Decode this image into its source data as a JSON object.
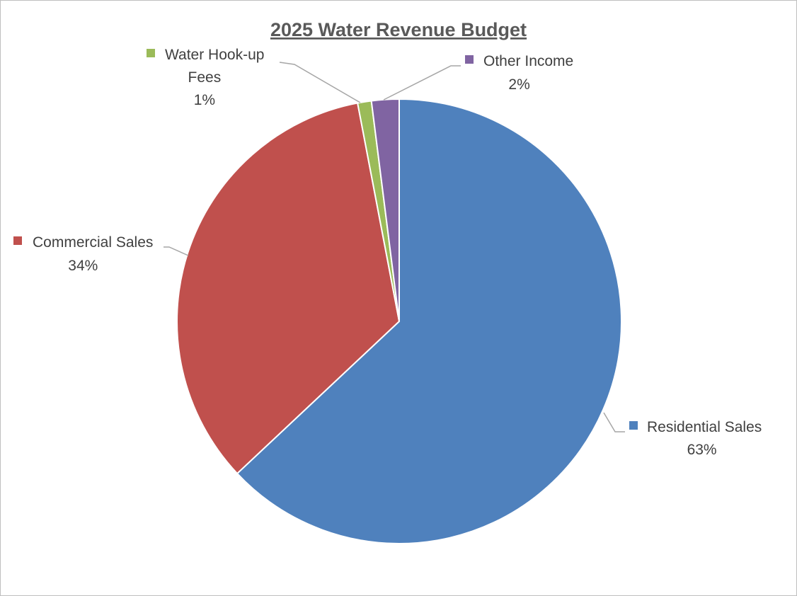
{
  "chart_data": {
    "type": "pie",
    "title": "2025 Water Revenue Budget",
    "slices": [
      {
        "label": "Residential Sales",
        "value": 63,
        "value_label": "63%",
        "color": "#4F81BD"
      },
      {
        "label": "Commercial Sales",
        "value": 34,
        "value_label": "34%",
        "color": "#C0504D"
      },
      {
        "label": "Water Hook-up Fees",
        "label_lines": [
          "Water Hook-up",
          "Fees"
        ],
        "value": 1,
        "value_label": "1%",
        "color": "#9BBB59"
      },
      {
        "label": "Other Income",
        "value": 2,
        "value_label": "2%",
        "color": "#8064A2"
      }
    ],
    "legend": "none",
    "data_labels": "outside with category name, legend key and percentage"
  }
}
